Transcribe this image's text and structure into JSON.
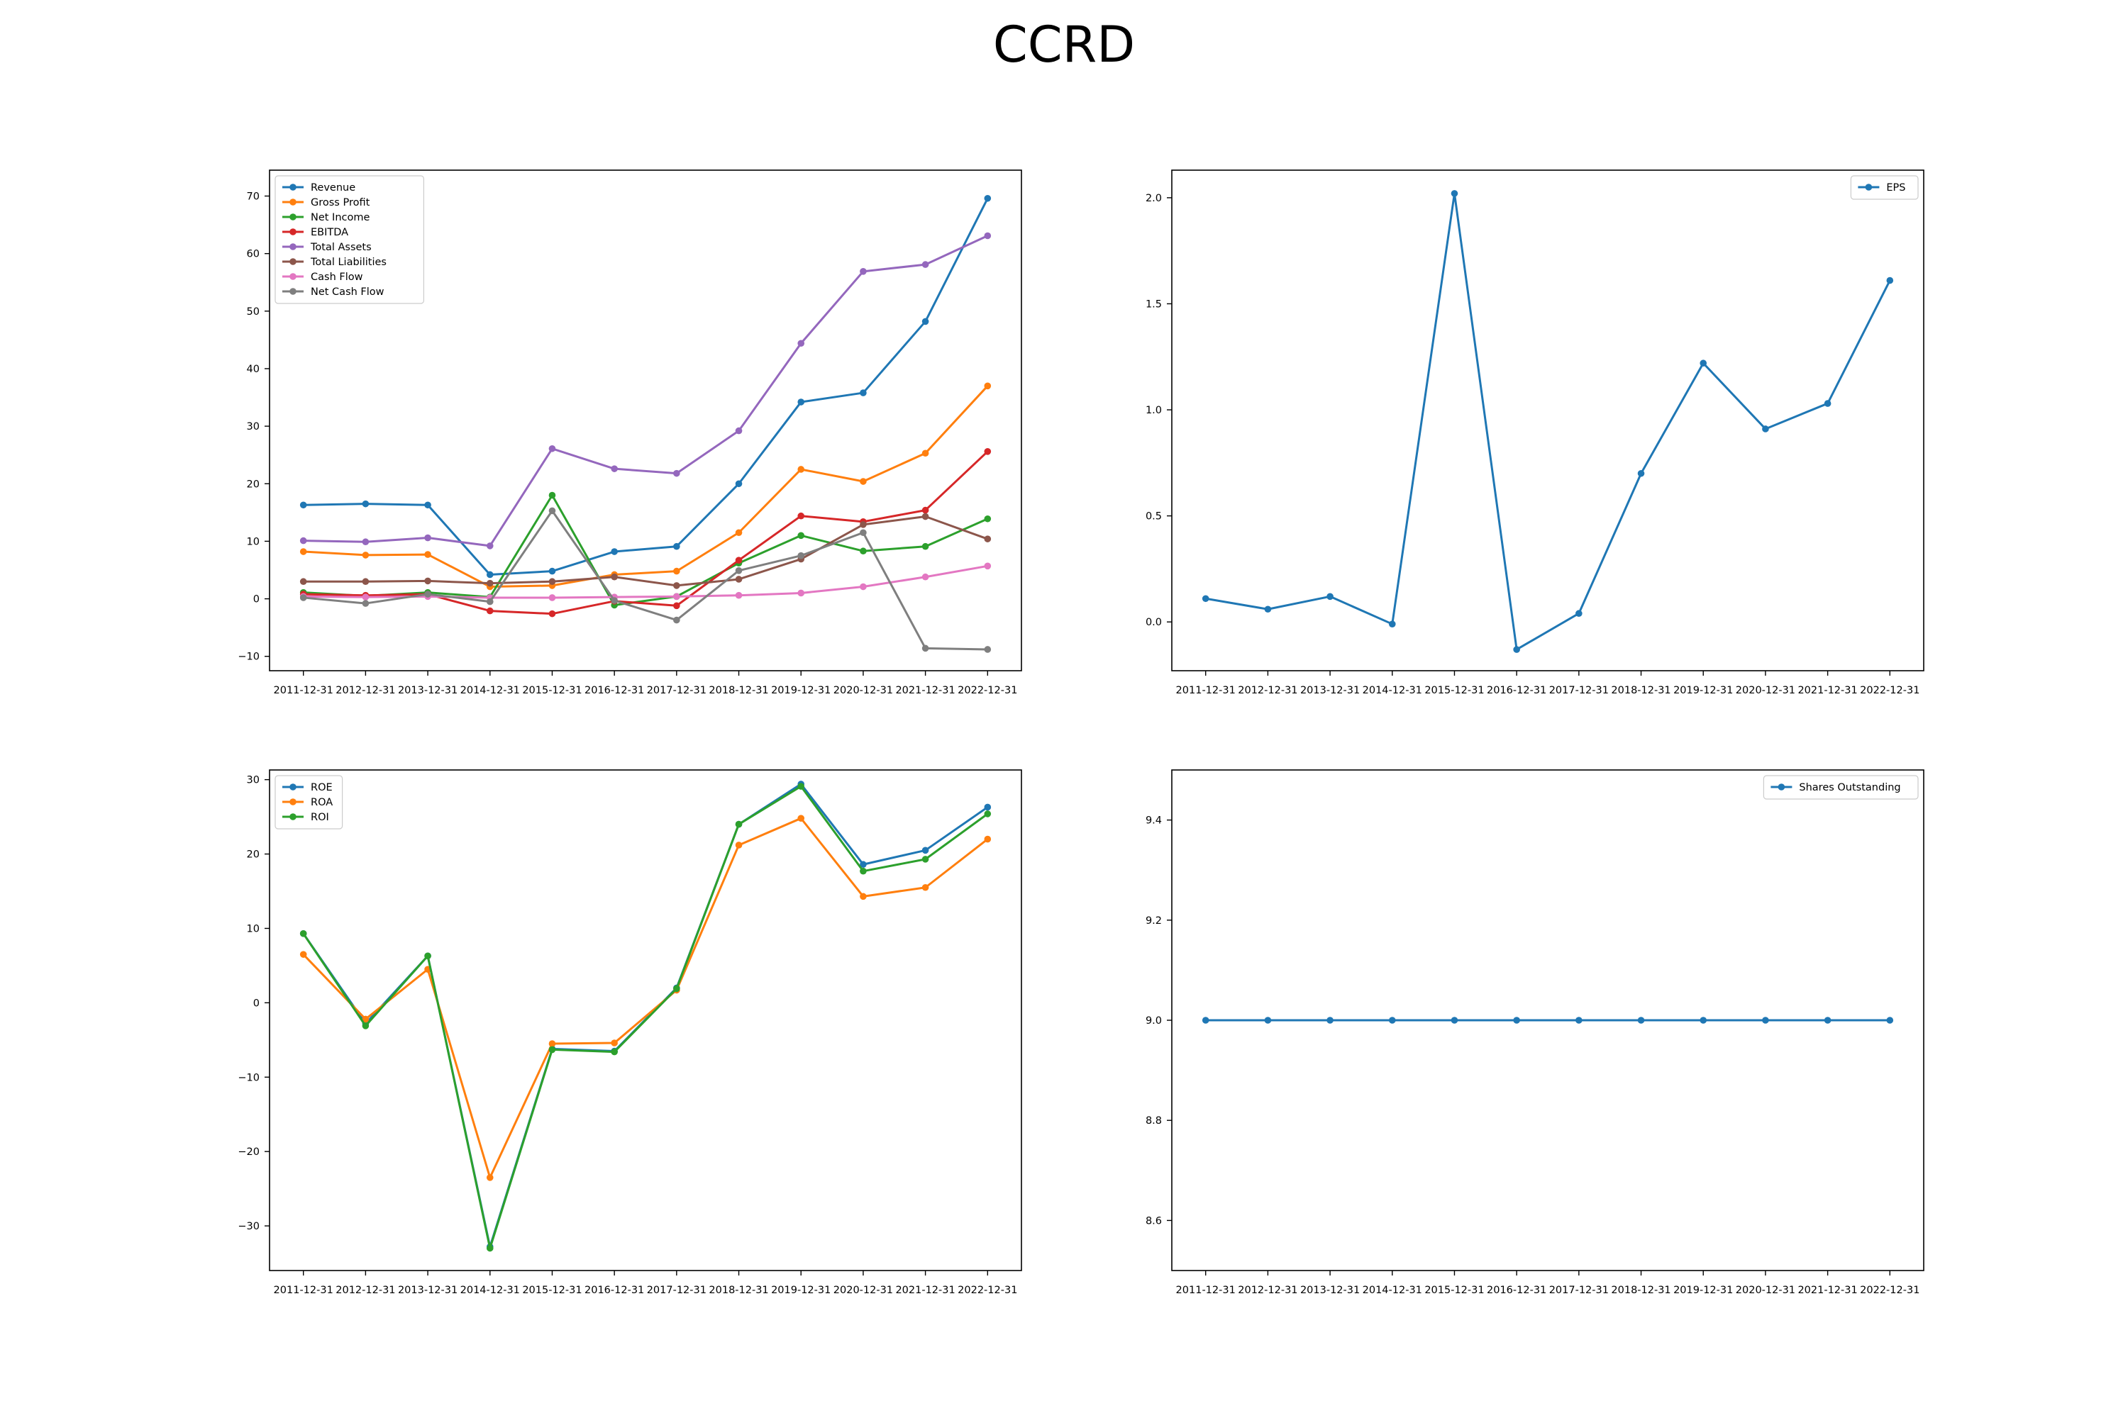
{
  "title": "CCRD",
  "chart_data": [
    {
      "type": "line",
      "ylim": [
        -12.5,
        74.5
      ],
      "yticks": [
        -10,
        0,
        10,
        20,
        30,
        40,
        50,
        60,
        70
      ],
      "grid": false,
      "legend": "top-left",
      "categories": [
        "2011-12-31",
        "2012-12-31",
        "2013-12-31",
        "2014-12-31",
        "2015-12-31",
        "2016-12-31",
        "2017-12-31",
        "2018-12-31",
        "2019-12-31",
        "2020-12-31",
        "2021-12-31",
        "2022-12-31"
      ],
      "series": [
        {
          "name": "Revenue",
          "color": "#1f77b4",
          "values": [
            16.3,
            16.5,
            16.3,
            4.2,
            4.8,
            8.2,
            9.1,
            20.0,
            34.2,
            35.8,
            48.2,
            69.6
          ]
        },
        {
          "name": "Gross Profit",
          "color": "#ff7f0e",
          "values": [
            8.2,
            7.6,
            7.7,
            2.1,
            2.3,
            4.2,
            4.8,
            11.5,
            22.5,
            20.4,
            25.3,
            37.0
          ]
        },
        {
          "name": "Net Income",
          "color": "#2ca02c",
          "values": [
            1.1,
            0.5,
            1.1,
            0.3,
            18.0,
            -1.1,
            0.4,
            6.2,
            11.0,
            8.3,
            9.1,
            13.9
          ]
        },
        {
          "name": "EBITDA",
          "color": "#d62728",
          "values": [
            0.8,
            0.6,
            0.8,
            -2.1,
            -2.6,
            -0.4,
            -1.2,
            6.7,
            14.4,
            13.4,
            15.4,
            25.6
          ]
        },
        {
          "name": "Total Assets",
          "color": "#9467bd",
          "values": [
            10.1,
            9.9,
            10.6,
            9.2,
            26.1,
            22.6,
            21.8,
            29.2,
            44.4,
            56.9,
            58.1,
            63.1
          ]
        },
        {
          "name": "Total Liabilities",
          "color": "#8c564b",
          "values": [
            3.0,
            3.0,
            3.1,
            2.7,
            3.0,
            3.8,
            2.3,
            3.4,
            6.9,
            12.9,
            14.3,
            10.4
          ]
        },
        {
          "name": "Cash Flow",
          "color": "#e377c2",
          "values": [
            0.4,
            0.3,
            0.4,
            0.2,
            0.2,
            0.3,
            0.4,
            0.6,
            1.0,
            2.1,
            3.8,
            5.7
          ]
        },
        {
          "name": "Net Cash Flow",
          "color": "#7f7f7f",
          "values": [
            0.2,
            -0.8,
            0.8,
            -0.5,
            15.3,
            -0.3,
            -3.7,
            4.9,
            7.5,
            11.5,
            -8.6,
            -8.8
          ]
        }
      ]
    },
    {
      "type": "line",
      "ylim": [
        -0.23,
        2.13
      ],
      "yticks": [
        0.0,
        0.5,
        1.0,
        1.5,
        2.0
      ],
      "ytick_labels": [
        "0.0",
        "0.5",
        "1.0",
        "1.5",
        "2.0"
      ],
      "grid": false,
      "legend": "top-right",
      "categories": [
        "2011-12-31",
        "2012-12-31",
        "2013-12-31",
        "2014-12-31",
        "2015-12-31",
        "2016-12-31",
        "2017-12-31",
        "2018-12-31",
        "2019-12-31",
        "2020-12-31",
        "2021-12-31",
        "2022-12-31"
      ],
      "series": [
        {
          "name": "EPS",
          "color": "#1f77b4",
          "values": [
            0.11,
            0.06,
            0.12,
            -0.01,
            2.02,
            -0.13,
            0.04,
            0.7,
            1.22,
            0.91,
            1.03,
            1.61
          ]
        }
      ]
    },
    {
      "type": "line",
      "ylim": [
        -36.0,
        31.3
      ],
      "yticks": [
        -30,
        -20,
        -10,
        0,
        10,
        20,
        30
      ],
      "grid": false,
      "legend": "top-left",
      "categories": [
        "2011-12-31",
        "2012-12-31",
        "2013-12-31",
        "2014-12-31",
        "2015-12-31",
        "2016-12-31",
        "2017-12-31",
        "2018-12-31",
        "2019-12-31",
        "2020-12-31",
        "2021-12-31",
        "2022-12-31"
      ],
      "series": [
        {
          "name": "ROE",
          "color": "#1f77b4",
          "values": [
            9.3,
            -2.8,
            6.3,
            -32.8,
            -6.2,
            -6.5,
            2.0,
            24.0,
            29.4,
            18.6,
            20.5,
            26.3
          ]
        },
        {
          "name": "ROA",
          "color": "#ff7f0e",
          "values": [
            6.5,
            -2.2,
            4.5,
            -23.5,
            -5.5,
            -5.4,
            1.7,
            21.2,
            24.8,
            14.3,
            15.5,
            22.0
          ]
        },
        {
          "name": "ROI",
          "color": "#2ca02c",
          "values": [
            9.3,
            -3.1,
            6.3,
            -33.0,
            -6.3,
            -6.6,
            1.9,
            24.0,
            29.1,
            17.7,
            19.3,
            25.4
          ]
        }
      ]
    },
    {
      "type": "line",
      "ylim": [
        8.5,
        9.5
      ],
      "yticks": [
        8.6,
        8.8,
        9.0,
        9.2,
        9.4
      ],
      "ytick_labels": [
        "8.6",
        "8.8",
        "9.0",
        "9.2",
        "9.4"
      ],
      "grid": false,
      "legend": "top-right",
      "categories": [
        "2011-12-31",
        "2012-12-31",
        "2013-12-31",
        "2014-12-31",
        "2015-12-31",
        "2016-12-31",
        "2017-12-31",
        "2018-12-31",
        "2019-12-31",
        "2020-12-31",
        "2021-12-31",
        "2022-12-31"
      ],
      "series": [
        {
          "name": "Shares Outstanding",
          "color": "#1f77b4",
          "values": [
            9.0,
            9.0,
            9.0,
            9.0,
            9.0,
            9.0,
            9.0,
            9.0,
            9.0,
            9.0,
            9.0,
            9.0
          ]
        }
      ]
    }
  ]
}
